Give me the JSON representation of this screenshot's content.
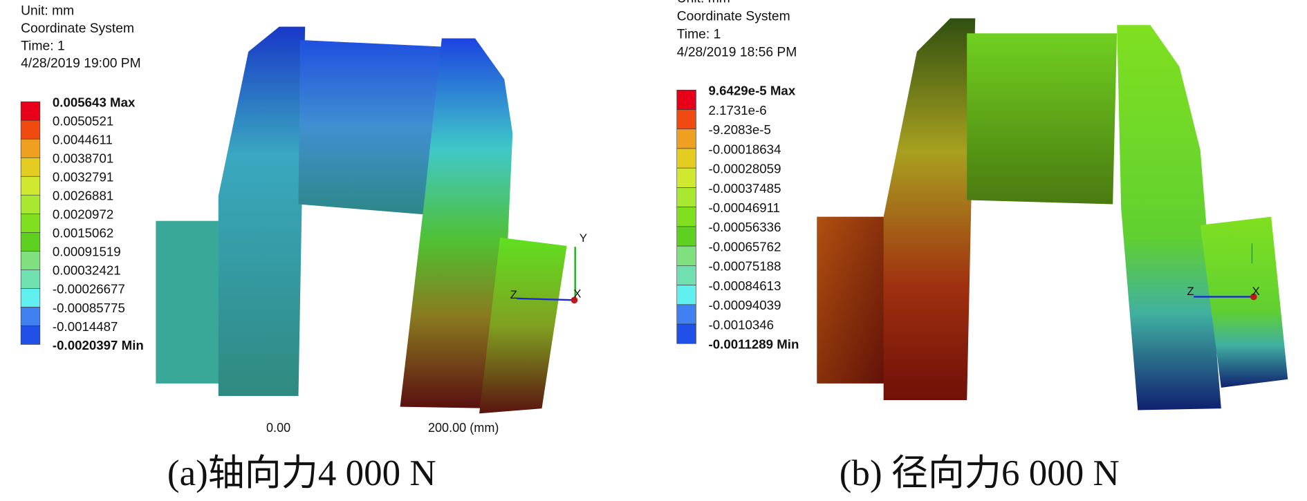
{
  "panels": [
    {
      "header": [
        "Unit: mm",
        "Coordinate System",
        "Time: 1",
        "4/28/2019 19:00 PM"
      ],
      "legend": [
        "0.005643 Max",
        "0.0050521",
        "0.0044611",
        "0.0038701",
        "0.0032791",
        "0.0026881",
        "0.0020972",
        "0.0015062",
        "0.00091519",
        "0.00032421",
        "-0.00026677",
        "-0.00085775",
        "-0.0014487",
        "-0.0020397 Min"
      ],
      "axes": [
        "Y",
        "Z",
        "X"
      ],
      "scale": [
        "0.00",
        "200.00 (mm)"
      ],
      "caption": "(a)轴向力4 000 N"
    },
    {
      "header": [
        "Unit: mm",
        "Coordinate System",
        "Time: 1",
        "4/28/2019 18:56 PM"
      ],
      "legend": [
        "9.6429e-5 Max",
        "2.1731e-6",
        "-9.2083e-5",
        "-0.00018634",
        "-0.00028059",
        "-0.00037485",
        "-0.00046911",
        "-0.00056336",
        "-0.00065762",
        "-0.00075188",
        "-0.00084613",
        "-0.00094039",
        "-0.0010346",
        "-0.0011289 Min"
      ],
      "axes": [
        "Z",
        "X"
      ],
      "caption": "(b) 径向力6 000 N"
    }
  ]
}
